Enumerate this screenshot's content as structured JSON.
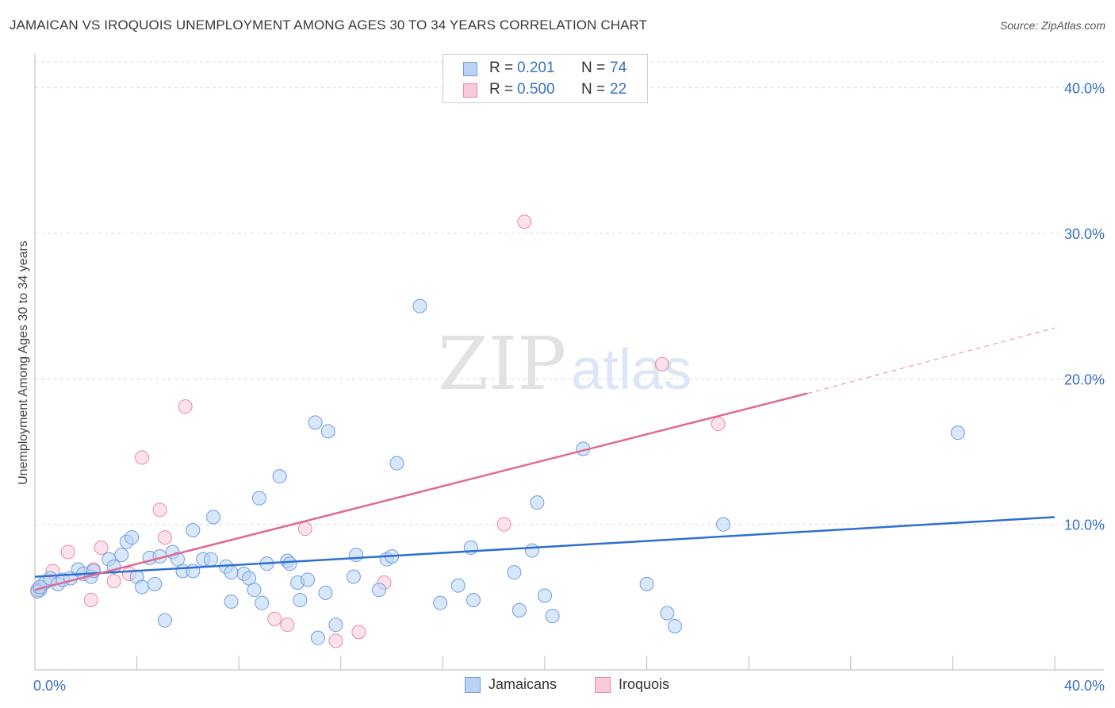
{
  "title": "JAMAICAN VS IROQUOIS UNEMPLOYMENT AMONG AGES 30 TO 34 YEARS CORRELATION CHART",
  "source": "Source: ZipAtlas.com",
  "watermark": {
    "zip": "ZIP",
    "atlas": "atlas"
  },
  "legend_top": {
    "rows": [
      {
        "r_key": "R =",
        "r_value": "0.201",
        "n_key": "N =",
        "n_value": "74",
        "color": "#6f9ee0",
        "fill": "#bad3f5"
      },
      {
        "r_key": "R =",
        "r_value": "0.500",
        "n_key": "N =",
        "n_value": "22",
        "color": "#e88aa6",
        "fill": "#f9cad8"
      }
    ]
  },
  "legend_bottom": [
    {
      "label": "Jamaicans",
      "color": "#6f9ee0",
      "fill": "#bad3f5"
    },
    {
      "label": "Iroquois",
      "color": "#e88aa6",
      "fill": "#f9cad8"
    }
  ],
  "chart_data": {
    "type": "scatter",
    "title": "JAMAICAN VS IROQUOIS UNEMPLOYMENT AMONG AGES 30 TO 34 YEARS CORRELATION CHART",
    "xlabel": "",
    "ylabel": "Unemployment Among Ages 30 to 34 years",
    "xlim": [
      0,
      40
    ],
    "ylim": [
      0,
      42
    ],
    "x_tick_labels": [
      "0.0%",
      "40.0%"
    ],
    "y_tick_labels": [
      "10.0%",
      "20.0%",
      "30.0%",
      "40.0%"
    ],
    "y_ticks": [
      10,
      20,
      30,
      40
    ],
    "grid": "horizontal dashed",
    "legend_position": "top-center",
    "series": [
      {
        "name": "Jamaicans",
        "color": "#6f9ee0",
        "fill": "#bad3f5",
        "points": [
          [
            0.2,
            5.5
          ],
          [
            0.4,
            6.0
          ],
          [
            0.6,
            6.3
          ],
          [
            0.9,
            5.9
          ],
          [
            1.1,
            6.2
          ],
          [
            1.4,
            6.3
          ],
          [
            1.7,
            6.9
          ],
          [
            1.9,
            6.6
          ],
          [
            2.2,
            6.4
          ],
          [
            2.3,
            6.8
          ],
          [
            2.9,
            7.6
          ],
          [
            3.1,
            7.1
          ],
          [
            3.4,
            7.9
          ],
          [
            3.6,
            8.8
          ],
          [
            3.8,
            9.1
          ],
          [
            4.0,
            6.4
          ],
          [
            4.2,
            5.7
          ],
          [
            4.5,
            7.7
          ],
          [
            4.7,
            5.9
          ],
          [
            4.9,
            7.8
          ],
          [
            5.1,
            3.4
          ],
          [
            5.4,
            8.1
          ],
          [
            5.6,
            7.6
          ],
          [
            5.8,
            6.8
          ],
          [
            6.2,
            6.8
          ],
          [
            6.2,
            9.6
          ],
          [
            6.6,
            7.6
          ],
          [
            6.9,
            7.6
          ],
          [
            7.0,
            10.5
          ],
          [
            7.5,
            7.1
          ],
          [
            7.7,
            6.7
          ],
          [
            7.7,
            4.7
          ],
          [
            8.2,
            6.6
          ],
          [
            8.4,
            6.3
          ],
          [
            8.6,
            5.5
          ],
          [
            8.8,
            11.8
          ],
          [
            8.9,
            4.6
          ],
          [
            9.1,
            7.3
          ],
          [
            9.6,
            13.3
          ],
          [
            9.9,
            7.5
          ],
          [
            10.0,
            7.3
          ],
          [
            10.3,
            6.0
          ],
          [
            10.4,
            4.8
          ],
          [
            10.7,
            6.2
          ],
          [
            11.0,
            17.0
          ],
          [
            11.1,
            2.2
          ],
          [
            11.4,
            5.3
          ],
          [
            11.5,
            16.4
          ],
          [
            11.8,
            3.1
          ],
          [
            12.5,
            6.4
          ],
          [
            12.6,
            7.9
          ],
          [
            13.5,
            5.5
          ],
          [
            13.8,
            7.6
          ],
          [
            14.0,
            7.8
          ],
          [
            14.2,
            14.2
          ],
          [
            15.1,
            25.0
          ],
          [
            15.9,
            4.6
          ],
          [
            16.6,
            5.8
          ],
          [
            17.1,
            8.4
          ],
          [
            17.2,
            4.8
          ],
          [
            18.8,
            6.7
          ],
          [
            19.0,
            4.1
          ],
          [
            19.5,
            8.2
          ],
          [
            19.7,
            11.5
          ],
          [
            20.0,
            5.1
          ],
          [
            20.3,
            3.7
          ],
          [
            21.5,
            15.2
          ],
          [
            24.0,
            5.9
          ],
          [
            24.8,
            3.9
          ],
          [
            25.1,
            3.0
          ],
          [
            27.0,
            10.0
          ],
          [
            36.2,
            16.3
          ],
          [
            0.1,
            5.4
          ],
          [
            0.2,
            5.7
          ]
        ],
        "trendline": {
          "x": [
            0,
            40
          ],
          "y": [
            6.4,
            10.5
          ]
        }
      },
      {
        "name": "Iroquois",
        "color": "#e88aa6",
        "fill": "#f9cad8",
        "points": [
          [
            0.1,
            5.5
          ],
          [
            0.7,
            6.8
          ],
          [
            1.3,
            8.1
          ],
          [
            2.2,
            4.8
          ],
          [
            2.3,
            6.9
          ],
          [
            2.6,
            8.4
          ],
          [
            3.1,
            6.1
          ],
          [
            3.7,
            6.6
          ],
          [
            4.2,
            14.6
          ],
          [
            4.9,
            11.0
          ],
          [
            5.1,
            9.1
          ],
          [
            5.9,
            18.1
          ],
          [
            9.4,
            3.5
          ],
          [
            9.9,
            3.1
          ],
          [
            10.6,
            9.7
          ],
          [
            11.8,
            2.0
          ],
          [
            12.7,
            2.6
          ],
          [
            13.7,
            6.0
          ],
          [
            18.4,
            10.0
          ],
          [
            19.2,
            30.8
          ],
          [
            24.6,
            21.0
          ],
          [
            26.8,
            16.9
          ]
        ],
        "trendline": {
          "x": [
            0,
            30.3
          ],
          "y": [
            5.5,
            19.0
          ],
          "dashed_extension": {
            "x": [
              30.3,
              40
            ],
            "y": [
              19.0,
              23.5
            ]
          }
        }
      }
    ]
  }
}
